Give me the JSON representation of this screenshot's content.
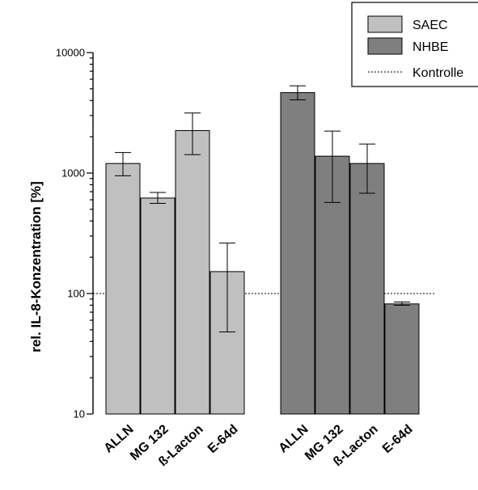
{
  "chart_data": {
    "type": "bar",
    "title": "",
    "xlabel": "",
    "ylabel": "rel. IL-8-Konzentration [%]",
    "y_scale": "log",
    "ylim": [
      10,
      10000
    ],
    "y_ticks": [
      10,
      100,
      1000,
      10000
    ],
    "y_tick_labels": [
      "10",
      "100",
      "1000",
      "10000"
    ],
    "grid": false,
    "legend_position": "top-right",
    "reference_line": {
      "name": "Kontrolle",
      "y": 100
    },
    "series": [
      {
        "name": "SAEC",
        "color": "#c0c0c0",
        "categories": [
          "ALLN",
          "MG 132",
          "ß-Lacton",
          "E-64d"
        ],
        "values": [
          1200,
          620,
          2250,
          152
        ],
        "error_low": [
          950,
          560,
          1420,
          48
        ],
        "error_high": [
          1480,
          690,
          3150,
          262
        ]
      },
      {
        "name": "NHBE",
        "color": "#7f7f7f",
        "categories": [
          "ALLN",
          "MG 132",
          "ß-Lacton",
          "E-64d"
        ],
        "values": [
          4650,
          1380,
          1200,
          82
        ],
        "error_low": [
          4050,
          570,
          680,
          80
        ],
        "error_high": [
          5300,
          2230,
          1740,
          85
        ]
      }
    ]
  }
}
